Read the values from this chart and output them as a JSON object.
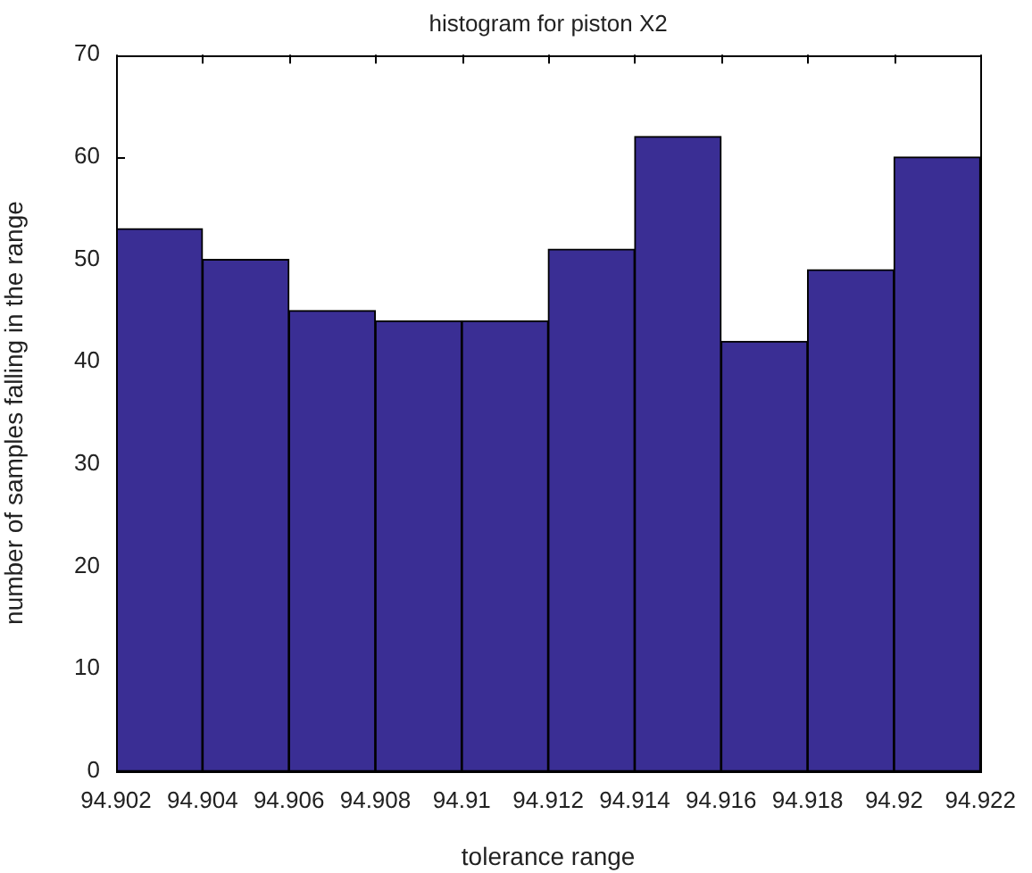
{
  "chart_data": {
    "type": "histogram",
    "title": "histogram for piston X2",
    "xlabel": "tolerance range",
    "ylabel": "number of samples falling in the range",
    "bins": [
      94.902,
      94.904,
      94.906,
      94.908,
      94.91,
      94.912,
      94.914,
      94.916,
      94.918,
      94.92,
      94.922
    ],
    "values": [
      53,
      50,
      45,
      44,
      44,
      51,
      62,
      42,
      49,
      60
    ],
    "color": "#3a2e94",
    "xlim": [
      94.902,
      94.922
    ],
    "xticks": [
      94.902,
      94.904,
      94.906,
      94.908,
      94.91,
      94.912,
      94.914,
      94.916,
      94.918,
      94.92,
      94.922
    ],
    "ylim": [
      0,
      70
    ],
    "yticks": [
      0,
      10,
      20,
      30,
      40,
      50,
      60,
      70
    ]
  }
}
